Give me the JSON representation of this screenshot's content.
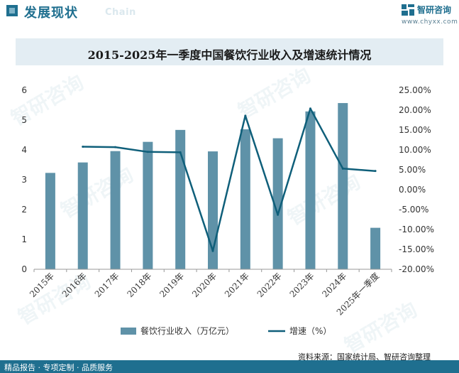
{
  "header": {
    "section_title": "发展现状",
    "section_subtitle": "Chain",
    "brand_name": "智研咨询",
    "brand_url": "www.chyxx.com"
  },
  "watermarks": [
    "智研咨询",
    "智研咨询",
    "智研咨询",
    "智研咨询",
    "智研咨询",
    "智研咨询"
  ],
  "chart_data": {
    "type": "bar",
    "title": "2015-2025年一季度中国餐饮行业收入及增速统计情况",
    "categories": [
      "2015年",
      "2016年",
      "2017年",
      "2018年",
      "2019年",
      "2020年",
      "2021年",
      "2022年",
      "2023年",
      "2024年",
      "2025年一季度"
    ],
    "series": [
      {
        "name": "餐饮行业收入（万亿元）",
        "type": "bar",
        "axis": "left",
        "color": "#5f92a8",
        "values": [
          3.23,
          3.58,
          3.96,
          4.27,
          4.67,
          3.95,
          4.69,
          4.39,
          5.29,
          5.57,
          1.39
        ]
      },
      {
        "name": "增速（%）",
        "type": "line",
        "axis": "right",
        "color": "#0f5f7a",
        "values": [
          null,
          10.8,
          10.7,
          9.5,
          9.4,
          -15.4,
          18.6,
          -6.3,
          20.4,
          5.3,
          4.7
        ]
      }
    ],
    "left_axis": {
      "min": 0,
      "max": 6,
      "ticks": [
        0,
        1,
        2,
        3,
        4,
        5,
        6
      ]
    },
    "right_axis": {
      "min": -20,
      "max": 25,
      "ticks": [
        "-20.00%",
        "-15.00%",
        "-10.00%",
        "-5.00%",
        "0.00%",
        "5.00%",
        "10.00%",
        "15.00%",
        "20.00%",
        "25.00%"
      ]
    },
    "legend_position": "bottom"
  },
  "footer": {
    "left_text": "精品报告 · 专项定制 · 品质服务",
    "source": "资料来源：国家统计局、智研咨询整理"
  }
}
